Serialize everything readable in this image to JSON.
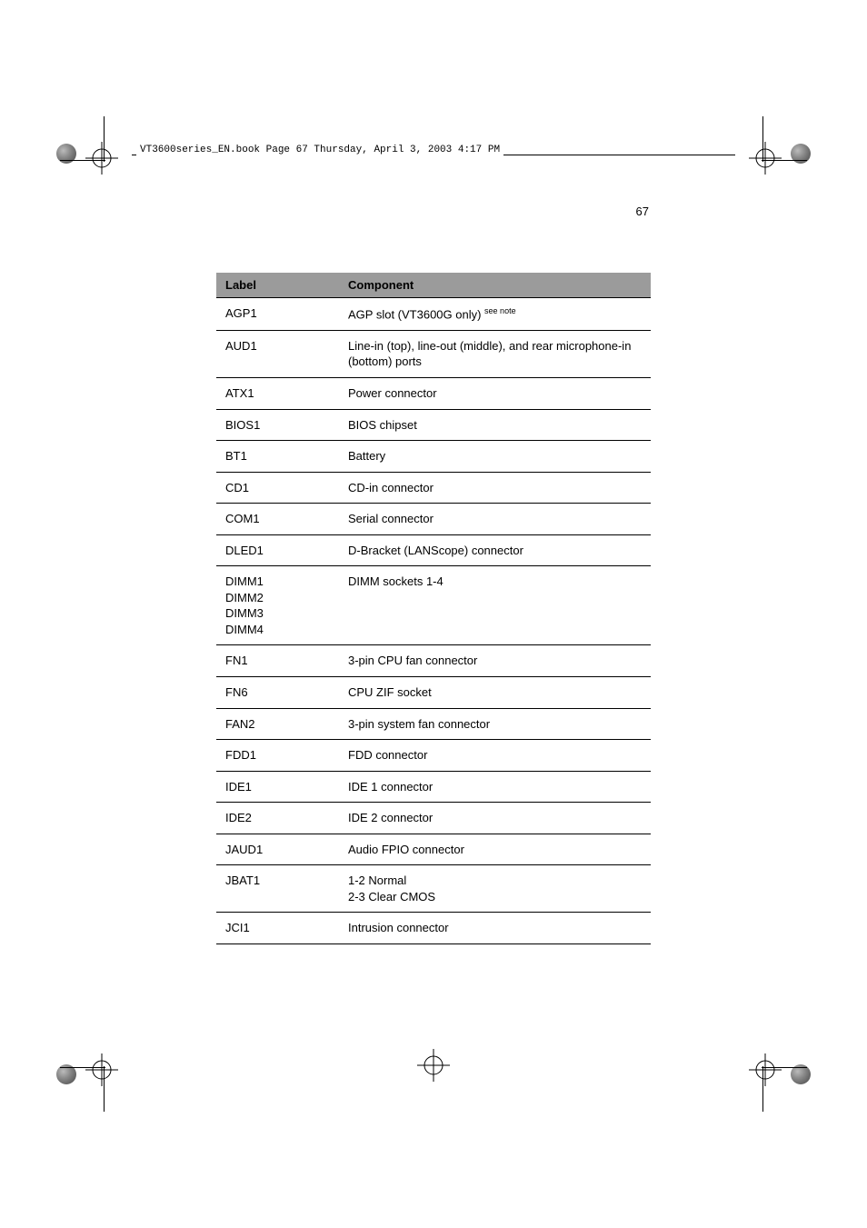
{
  "header_text": "VT3600series_EN.book  Page 67  Thursday, April 3, 2003  4:17 PM",
  "page_number": "67",
  "table": {
    "columns": [
      "Label",
      "Component"
    ],
    "rows": [
      {
        "label": "AGP1",
        "component_prefix": "AGP slot (VT3600G only) ",
        "component_super": "see note"
      },
      {
        "label": "AUD1",
        "component": "Line-in (top), line-out (middle), and rear microphone-in (bottom) ports"
      },
      {
        "label": "ATX1",
        "component": "Power connector"
      },
      {
        "label": "BIOS1",
        "component": "BIOS chipset"
      },
      {
        "label": "BT1",
        "component": "Battery"
      },
      {
        "label": "CD1",
        "component": "CD-in connector"
      },
      {
        "label": "COM1",
        "component": "Serial connector"
      },
      {
        "label": "DLED1",
        "component": "D-Bracket (LANScope) connector"
      },
      {
        "label": "DIMM1\nDIMM2\nDIMM3\nDIMM4",
        "component": "DIMM sockets 1-4"
      },
      {
        "label": "FN1",
        "component": "3-pin CPU fan connector"
      },
      {
        "label": "FN6",
        "component": "CPU ZIF socket"
      },
      {
        "label": "FAN2",
        "component": "3-pin system fan connector"
      },
      {
        "label": "FDD1",
        "component": "FDD connector"
      },
      {
        "label": "IDE1",
        "component": "IDE 1 connector"
      },
      {
        "label": "IDE2",
        "component": "IDE 2 connector"
      },
      {
        "label": "JAUD1",
        "component": "Audio FPIO connector"
      },
      {
        "label": "JBAT1",
        "component": "1-2 Normal\n2-3 Clear CMOS"
      },
      {
        "label": "JCI1",
        "component": "Intrusion connector"
      }
    ]
  }
}
